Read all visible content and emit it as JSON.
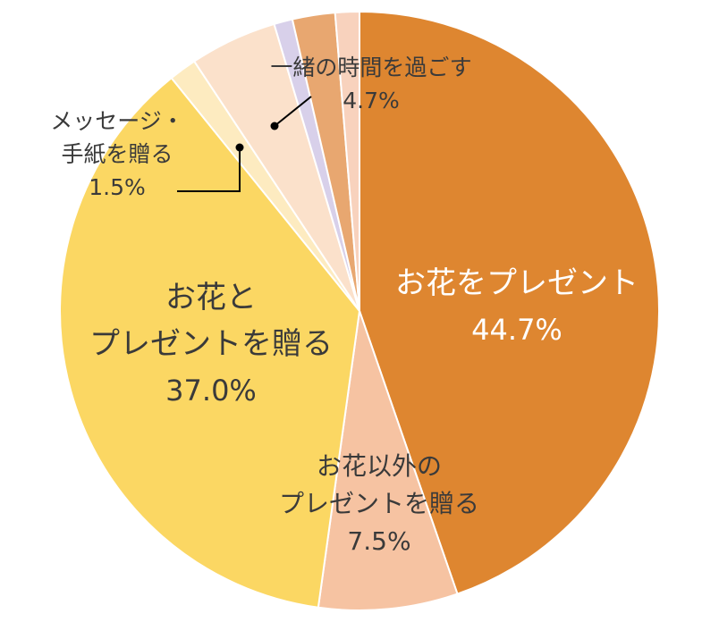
{
  "chart_data": {
    "type": "pie",
    "start": "top",
    "direction": "clockwise",
    "slices": [
      {
        "key": "flower_present",
        "lines": [
          "お花をプレゼント"
        ],
        "value": 44.7,
        "value_label": "44.7%",
        "color": "#DE8630",
        "label_color": "#ffffff"
      },
      {
        "key": "non_flower_present",
        "lines": [
          "お花以外の",
          "プレゼントを贈る"
        ],
        "value": 7.5,
        "value_label": "7.5%",
        "color": "#F6C3A2",
        "label_color": "#3a3a3a"
      },
      {
        "key": "flower_and_present",
        "lines": [
          "お花と",
          "プレゼントを贈る"
        ],
        "value": 37.0,
        "value_label": "37.0%",
        "color": "#FBD763",
        "label_color": "#3a3a3a"
      },
      {
        "key": "message_letter",
        "lines": [
          "メッセージ・",
          "手紙を贈る"
        ],
        "value": 1.5,
        "value_label": "1.5%",
        "color": "#FDEBC0",
        "label_color": "#3a3a3a"
      },
      {
        "key": "spend_time",
        "lines": [
          "一緒の時間を過ごす"
        ],
        "value": 4.7,
        "value_label": "4.7%",
        "color": "#FBE1CB",
        "label_color": "#3a3a3a"
      },
      {
        "key": "other_lavender",
        "lines": [],
        "value": 1.0,
        "value_label": "",
        "color": "#D8D0EA",
        "label_color": "#3a3a3a"
      },
      {
        "key": "other_tan",
        "lines": [],
        "value": 2.3,
        "value_label": "",
        "color": "#E8A770",
        "label_color": "#3a3a3a"
      },
      {
        "key": "other_peach",
        "lines": [],
        "value": 1.3,
        "value_label": "",
        "color": "#F8D2BD",
        "label_color": "#3a3a3a"
      }
    ]
  }
}
